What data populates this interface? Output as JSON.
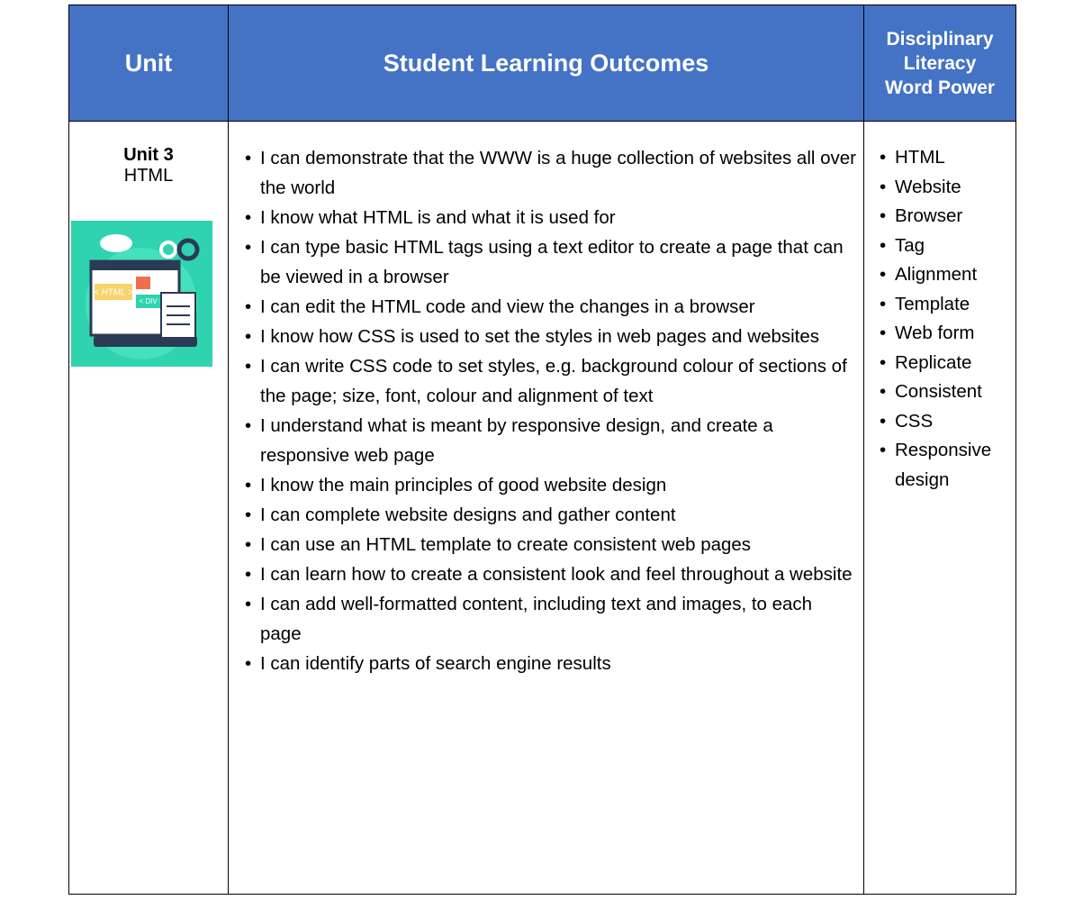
{
  "table": {
    "headers": {
      "unit": "Unit",
      "outcomes": "Student Learning Outcomes",
      "word_power": [
        "Disciplinary",
        "Literacy",
        "Word Power"
      ]
    },
    "row": {
      "unit_title": "Unit 3",
      "unit_name": "HTML",
      "image_labels": [
        "< HTML >",
        "< DIV >"
      ],
      "outcomes": [
        "I can demonstrate that the WWW is a huge collection of websites all over the world",
        "I know what HTML is and what it is used for",
        "I can type basic HTML tags using a text editor to create a page that can be viewed in a browser",
        "I can edit the HTML code and view the changes in a browser",
        "I know how CSS is used to set the styles in web pages and websites",
        "I can write CSS code to set styles, e.g. background colour of sections of the page; size, font, colour and alignment of text",
        "I understand what is meant by responsive design, and create a responsive web page",
        "I know the main principles of good website design",
        "I can complete website designs and gather content",
        "I can use an HTML template to create consistent web pages",
        "I can learn how to create a consistent look and feel throughout a website",
        "I can add well-formatted content, including text and images, to each page",
        "I can identify parts of search engine results"
      ],
      "word_power": [
        "HTML",
        "Website",
        "Browser",
        "Tag",
        "Alignment",
        "Template",
        "Web form",
        "Replicate",
        "Consistent",
        "CSS",
        "Responsive design"
      ]
    }
  }
}
